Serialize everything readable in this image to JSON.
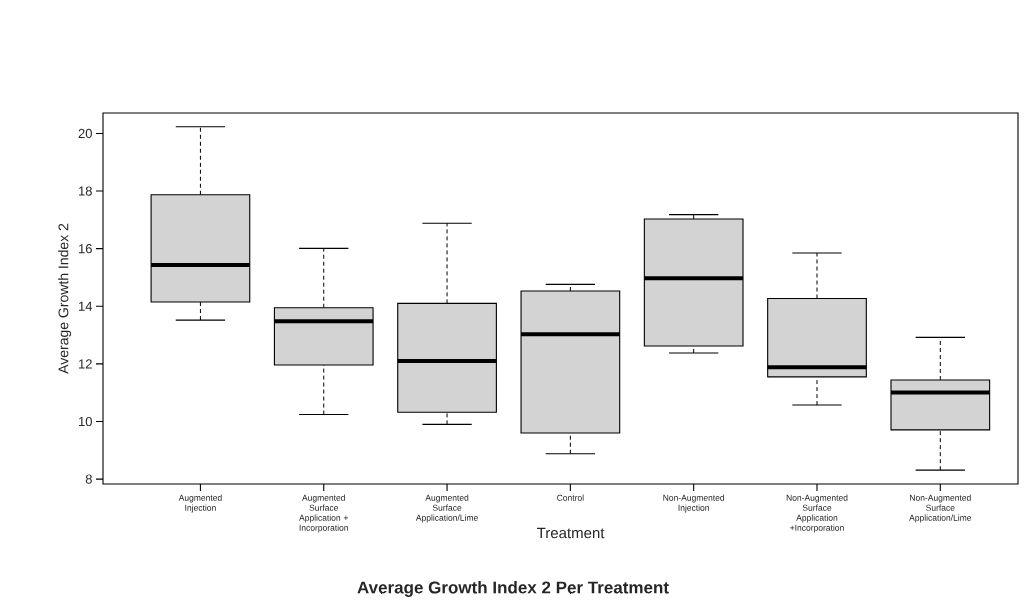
{
  "chart_data": {
    "type": "box",
    "title": "Average Growth Index 2 Per Treatment",
    "xlabel": "Treatment",
    "ylabel": "Average Growth Index 2",
    "categories": [
      "Augmented Injection",
      "Augmented Surface Application + Incorporation",
      "Augmented Surface Application/Lime",
      "Control",
      "Non-Augmented Injection",
      "Non-Augmented Surface Application +Incorporation",
      "Non-Augmented Surface Application/Lime"
    ],
    "boxes": [
      {
        "low": 13.52,
        "q1": 14.15,
        "median": 15.43,
        "q3": 17.87,
        "high": 20.23
      },
      {
        "low": 10.24,
        "q1": 11.96,
        "median": 13.48,
        "q3": 13.95,
        "high": 16.01
      },
      {
        "low": 9.9,
        "q1": 10.32,
        "median": 12.1,
        "q3": 14.1,
        "high": 16.88
      },
      {
        "low": 8.88,
        "q1": 9.6,
        "median": 13.03,
        "q3": 14.53,
        "high": 14.76
      },
      {
        "low": 12.38,
        "q1": 12.62,
        "median": 14.97,
        "q3": 17.03,
        "high": 17.18
      },
      {
        "low": 10.57,
        "q1": 11.55,
        "median": 11.88,
        "q3": 14.27,
        "high": 15.85
      },
      {
        "low": 8.31,
        "q1": 9.71,
        "median": 11.01,
        "q3": 11.44,
        "high": 12.92
      }
    ],
    "color": "#d3d3d3",
    "ylim": [
      7.83,
      20.71
    ],
    "yticks": [
      8,
      10,
      12,
      14,
      16,
      18,
      20
    ]
  }
}
